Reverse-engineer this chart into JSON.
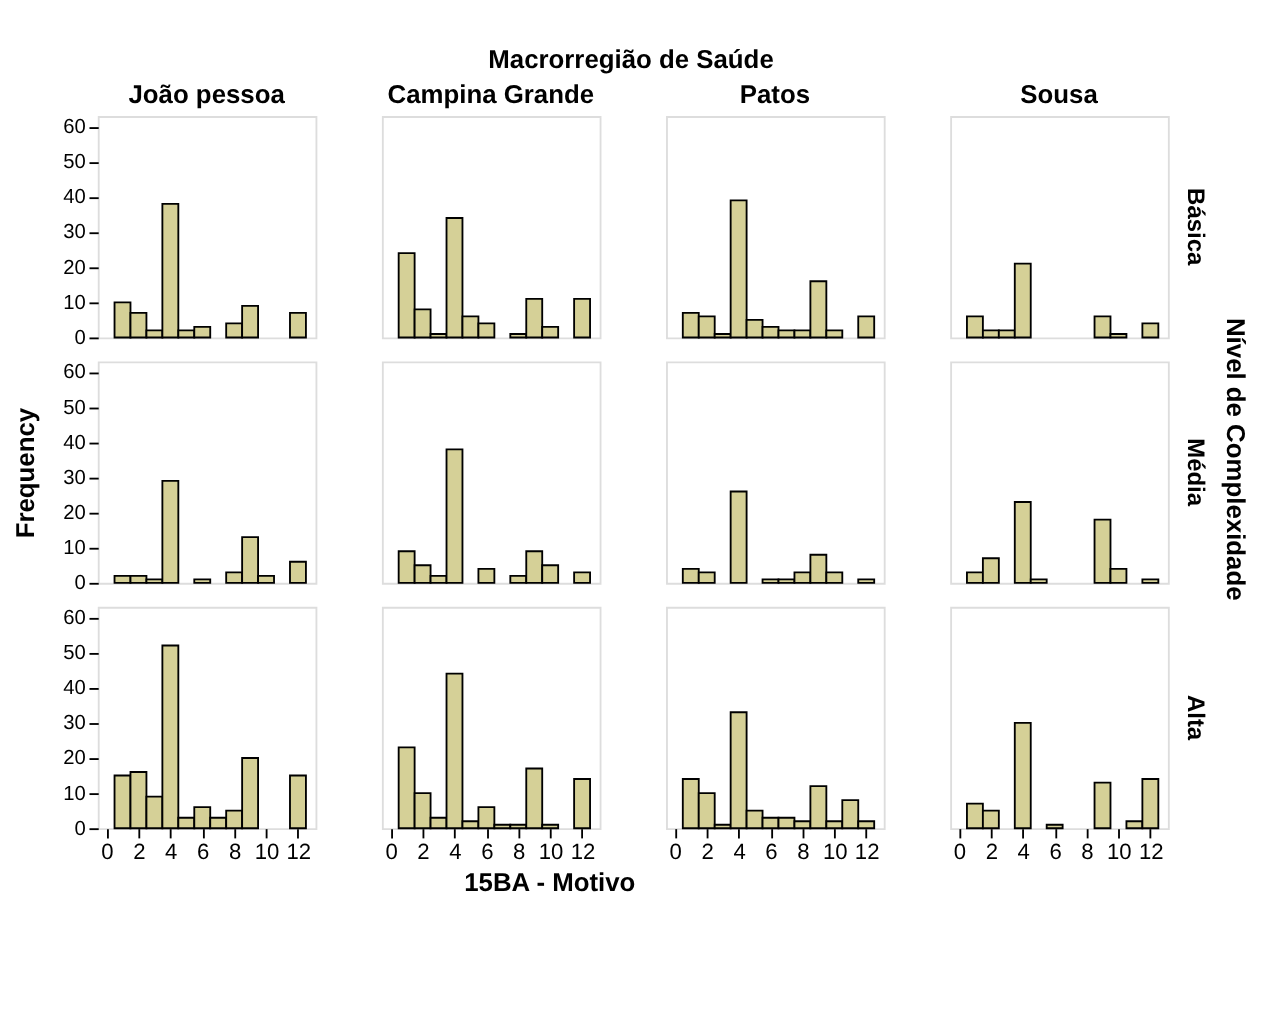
{
  "chart_data": [
    {
      "type": "histogram",
      "title": "João pessoa",
      "annotations": [
        "Macrorregião de Saúde",
        "15BA - Motivo",
        "Nível de Complexidade"
      ],
      "bins": [
        0.5,
        1.5,
        2.5,
        3.5,
        4.5,
        5.5,
        6.5,
        7.5,
        8.5,
        9.5,
        10.5,
        11.5,
        12.5
      ],
      "values": [
        10,
        7,
        2,
        38,
        2,
        3,
        0,
        4,
        9,
        0,
        0,
        7
      ],
      "color": "#d5d097",
      "xlim": [
        -0.55,
        13.1
      ],
      "ylim": [
        0,
        63
      ],
      "xticks": [
        0,
        2,
        4,
        6,
        8,
        10,
        12
      ],
      "yticks": [
        0,
        10,
        20,
        30,
        40,
        50,
        60
      ],
      "tick_labels": "y",
      "grid": false
    },
    {
      "type": "histogram",
      "title": "Campina Grande",
      "bins": [
        0.5,
        1.5,
        2.5,
        3.5,
        4.5,
        5.5,
        6.5,
        7.5,
        8.5,
        9.5,
        10.5,
        11.5,
        12.5
      ],
      "values": [
        24,
        8,
        1,
        34,
        6,
        4,
        0,
        1,
        11,
        3,
        0,
        11
      ],
      "color": "#d5d097",
      "xlim": [
        -0.55,
        13.1
      ],
      "ylim": [
        0,
        63
      ],
      "xticks": [
        0,
        2,
        4,
        6,
        8,
        10,
        12
      ],
      "yticks": [
        0,
        10,
        20,
        30,
        40,
        50,
        60
      ],
      "tick_labels": false,
      "grid": false
    },
    {
      "type": "histogram",
      "title": "Patos",
      "bins": [
        0.5,
        1.5,
        2.5,
        3.5,
        4.5,
        5.5,
        6.5,
        7.5,
        8.5,
        9.5,
        10.5,
        11.5,
        12.5
      ],
      "values": [
        7,
        6,
        1,
        39,
        5,
        3,
        2,
        2,
        16,
        2,
        0,
        6
      ],
      "color": "#d5d097",
      "xlim": [
        -0.55,
        13.1
      ],
      "ylim": [
        0,
        63
      ],
      "xticks": [
        0,
        2,
        4,
        6,
        8,
        10,
        12
      ],
      "yticks": [
        0,
        10,
        20,
        30,
        40,
        50,
        60
      ],
      "tick_labels": false,
      "grid": false
    },
    {
      "type": "histogram",
      "title": "Sousa",
      "y2label": "Básica",
      "bins": [
        0.5,
        1.5,
        2.5,
        3.5,
        4.5,
        5.5,
        6.5,
        7.5,
        8.5,
        9.5,
        10.5,
        11.5,
        12.5
      ],
      "values": [
        6,
        2,
        2,
        21,
        0,
        0,
        0,
        0,
        6,
        1,
        0,
        4
      ],
      "color": "#d5d097",
      "xlim": [
        -0.55,
        13.1
      ],
      "ylim": [
        0,
        63
      ],
      "xticks": [
        0,
        2,
        4,
        6,
        8,
        10,
        12
      ],
      "yticks": [
        0,
        10,
        20,
        30,
        40,
        50,
        60
      ],
      "tick_labels": false,
      "grid": false
    },
    {
      "type": "histogram",
      "ylabel": "Frequency",
      "bins": [
        0.5,
        1.5,
        2.5,
        3.5,
        4.5,
        5.5,
        6.5,
        7.5,
        8.5,
        9.5,
        10.5,
        11.5,
        12.5
      ],
      "values": [
        2,
        2,
        1,
        29,
        0,
        1,
        0,
        3,
        13,
        2,
        0,
        6
      ],
      "color": "#d5d097",
      "xlim": [
        -0.55,
        13.1
      ],
      "ylim": [
        0,
        63
      ],
      "xticks": [
        0,
        2,
        4,
        6,
        8,
        10,
        12
      ],
      "yticks": [
        0,
        10,
        20,
        30,
        40,
        50,
        60
      ],
      "tick_labels": "y",
      "grid": false
    },
    {
      "type": "histogram",
      "bins": [
        0.5,
        1.5,
        2.5,
        3.5,
        4.5,
        5.5,
        6.5,
        7.5,
        8.5,
        9.5,
        10.5,
        11.5,
        12.5
      ],
      "values": [
        9,
        5,
        2,
        38,
        0,
        4,
        0,
        2,
        9,
        5,
        0,
        3
      ],
      "color": "#d5d097",
      "xlim": [
        -0.55,
        13.1
      ],
      "ylim": [
        0,
        63
      ],
      "xticks": [
        0,
        2,
        4,
        6,
        8,
        10,
        12
      ],
      "yticks": [
        0,
        10,
        20,
        30,
        40,
        50,
        60
      ],
      "tick_labels": false,
      "grid": false
    },
    {
      "type": "histogram",
      "bins": [
        0.5,
        1.5,
        2.5,
        3.5,
        4.5,
        5.5,
        6.5,
        7.5,
        8.5,
        9.5,
        10.5,
        11.5,
        12.5
      ],
      "values": [
        4,
        3,
        0,
        26,
        0,
        1,
        1,
        3,
        8,
        3,
        0,
        1
      ],
      "color": "#d5d097",
      "xlim": [
        -0.55,
        13.1
      ],
      "ylim": [
        0,
        63
      ],
      "xticks": [
        0,
        2,
        4,
        6,
        8,
        10,
        12
      ],
      "yticks": [
        0,
        10,
        20,
        30,
        40,
        50,
        60
      ],
      "tick_labels": false,
      "grid": false
    },
    {
      "type": "histogram",
      "y2label": "Média",
      "bins": [
        0.5,
        1.5,
        2.5,
        3.5,
        4.5,
        5.5,
        6.5,
        7.5,
        8.5,
        9.5,
        10.5,
        11.5,
        12.5
      ],
      "values": [
        3,
        7,
        0,
        23,
        1,
        0,
        0,
        0,
        18,
        4,
        0,
        1
      ],
      "color": "#d5d097",
      "xlim": [
        -0.55,
        13.1
      ],
      "ylim": [
        0,
        63
      ],
      "xticks": [
        0,
        2,
        4,
        6,
        8,
        10,
        12
      ],
      "yticks": [
        0,
        10,
        20,
        30,
        40,
        50,
        60
      ],
      "tick_labels": false,
      "grid": false
    },
    {
      "type": "histogram",
      "bins": [
        0.5,
        1.5,
        2.5,
        3.5,
        4.5,
        5.5,
        6.5,
        7.5,
        8.5,
        9.5,
        10.5,
        11.5,
        12.5
      ],
      "values": [
        15,
        16,
        9,
        52,
        3,
        6,
        3,
        5,
        20,
        0,
        0,
        15
      ],
      "color": "#d5d097",
      "xlim": [
        -0.55,
        13.1
      ],
      "ylim": [
        0,
        63
      ],
      "xticks": [
        0,
        2,
        4,
        6,
        8,
        10,
        12
      ],
      "yticks": [
        0,
        10,
        20,
        30,
        40,
        50,
        60
      ],
      "grid": false
    },
    {
      "type": "histogram",
      "bins": [
        0.5,
        1.5,
        2.5,
        3.5,
        4.5,
        5.5,
        6.5,
        7.5,
        8.5,
        9.5,
        10.5,
        11.5,
        12.5
      ],
      "values": [
        23,
        10,
        3,
        44,
        2,
        6,
        1,
        1,
        17,
        1,
        0,
        14
      ],
      "color": "#d5d097",
      "xlim": [
        -0.55,
        13.1
      ],
      "ylim": [
        0,
        63
      ],
      "xticks": [
        0,
        2,
        4,
        6,
        8,
        10,
        12
      ],
      "yticks": [
        0,
        10,
        20,
        30,
        40,
        50,
        60
      ],
      "tick_labels": "x",
      "grid": false
    },
    {
      "type": "histogram",
      "bins": [
        0.5,
        1.5,
        2.5,
        3.5,
        4.5,
        5.5,
        6.5,
        7.5,
        8.5,
        9.5,
        10.5,
        11.5,
        12.5
      ],
      "values": [
        14,
        10,
        1,
        33,
        5,
        3,
        3,
        2,
        12,
        2,
        8,
        2
      ],
      "color": "#d5d097",
      "xlim": [
        -0.55,
        13.1
      ],
      "ylim": [
        0,
        63
      ],
      "xticks": [
        0,
        2,
        4,
        6,
        8,
        10,
        12
      ],
      "yticks": [
        0,
        10,
        20,
        30,
        40,
        50,
        60
      ],
      "tick_labels": "x",
      "grid": false
    },
    {
      "type": "histogram",
      "y2label": "Alta",
      "bins": [
        0.5,
        1.5,
        2.5,
        3.5,
        4.5,
        5.5,
        6.5,
        7.5,
        8.5,
        9.5,
        10.5,
        11.5,
        12.5
      ],
      "values": [
        7,
        5,
        0,
        30,
        0,
        1,
        0,
        0,
        13,
        0,
        2,
        14
      ],
      "color": "#d5d097",
      "xlim": [
        -0.55,
        13.1
      ],
      "ylim": [
        0,
        63
      ],
      "xticks": [
        0,
        2,
        4,
        6,
        8,
        10,
        12
      ],
      "yticks": [
        0,
        10,
        20,
        30,
        40,
        50,
        60
      ],
      "tick_labels": "x",
      "grid": false
    }
  ]
}
